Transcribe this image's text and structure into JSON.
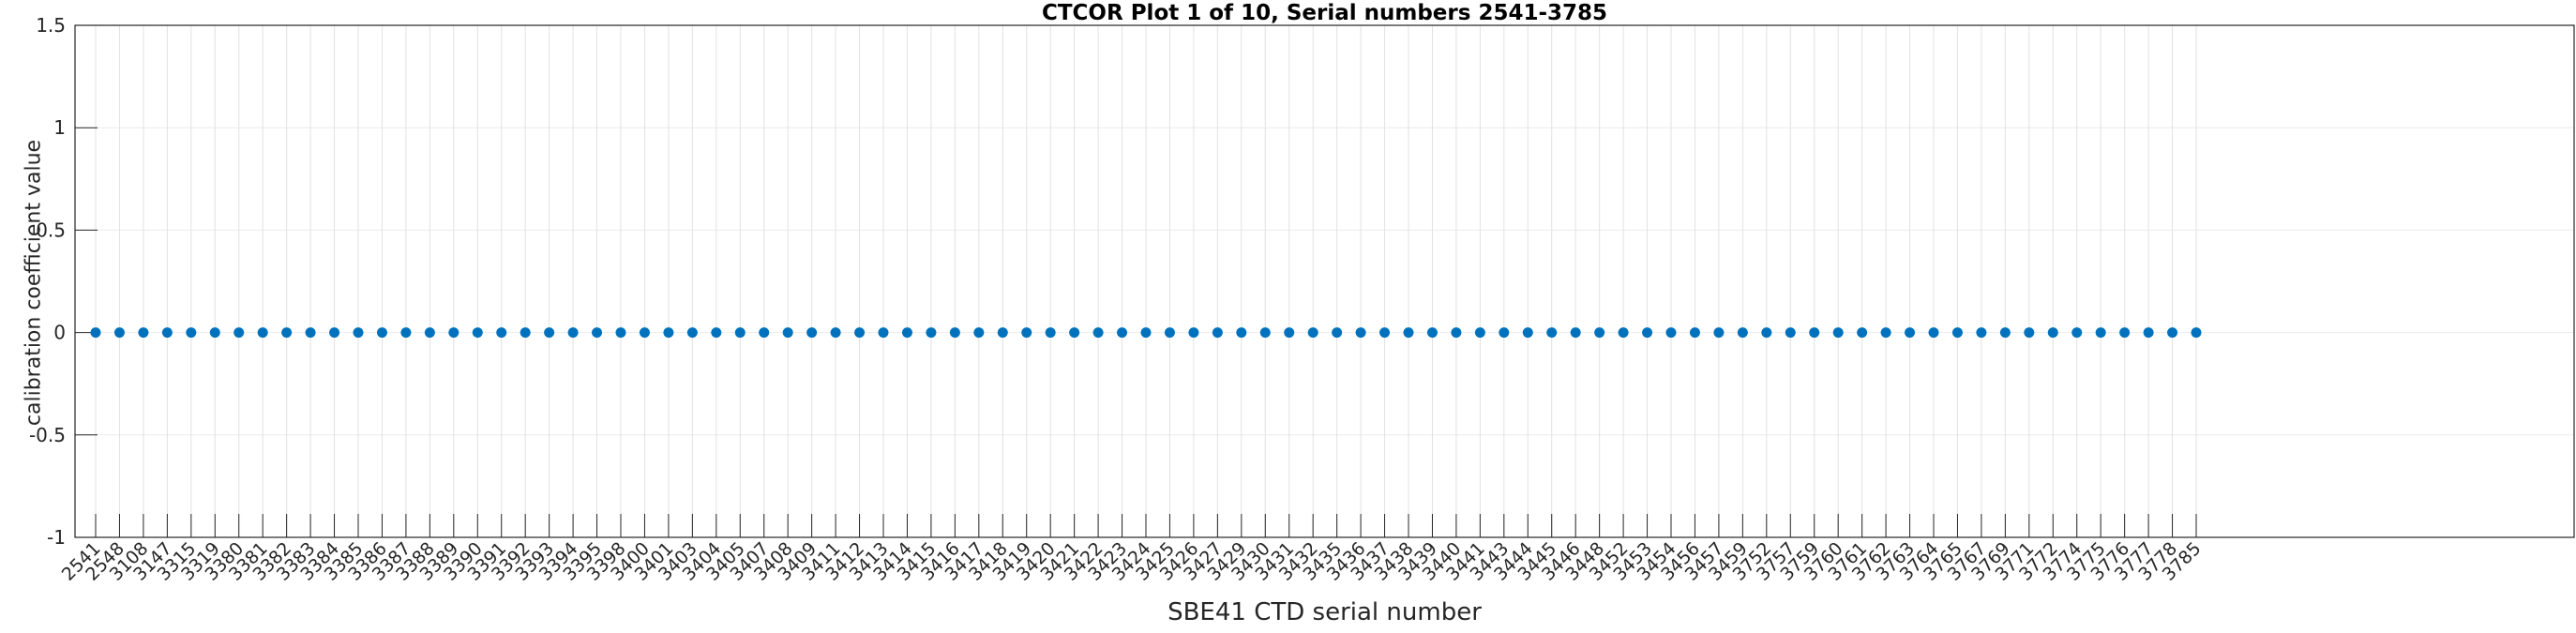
{
  "figure": {
    "title": "CTCOR Plot 1 of 10, Serial numbers 2541-3785"
  },
  "chart_data": {
    "type": "scatter",
    "title": "CTCOR Plot 1 of 10, Serial numbers 2541-3785",
    "xlabel": "SBE41 CTD serial number",
    "ylabel": "calibration coefficient value",
    "legend": "none",
    "ylim": [
      -1,
      1.5
    ],
    "yticks": [
      1.5,
      1,
      0.5,
      0,
      -0.5,
      -1
    ],
    "ytick_labels": [
      "1.5",
      "1",
      "0.5",
      "0",
      "-0.5",
      "-1"
    ],
    "grid": "vertical gridline at every serial number, faint horizontal gridlines at y ticks",
    "marker": "filled dot",
    "marker_color": "#0072BD",
    "grid_color": "#E2E2E2",
    "axis_color": "#262626",
    "categories": [
      "2541",
      "2548",
      "3108",
      "3147",
      "3315",
      "3319",
      "3380",
      "3381",
      "3382",
      "3383",
      "3384",
      "3385",
      "3386",
      "3387",
      "3388",
      "3389",
      "3390",
      "3391",
      "3392",
      "3393",
      "3394",
      "3395",
      "3398",
      "3400",
      "3401",
      "3403",
      "3404",
      "3405",
      "3407",
      "3408",
      "3409",
      "3411",
      "3412",
      "3413",
      "3414",
      "3415",
      "3416",
      "3417",
      "3418",
      "3419",
      "3420",
      "3421",
      "3422",
      "3423",
      "3424",
      "3425",
      "3426",
      "3427",
      "3429",
      "3430",
      "3431",
      "3432",
      "3435",
      "3436",
      "3437",
      "3438",
      "3439",
      "3440",
      "3441",
      "3443",
      "3444",
      "3445",
      "3446",
      "3448",
      "3452",
      "3453",
      "3454",
      "3456",
      "3457",
      "3459",
      "3752",
      "3757",
      "3759",
      "3760",
      "3761",
      "3762",
      "3763",
      "3764",
      "3765",
      "3767",
      "3769",
      "3771",
      "3772",
      "3774",
      "3775",
      "3776",
      "3777",
      "3778",
      "3785"
    ],
    "values": [
      0,
      0,
      0,
      0,
      0,
      0,
      0,
      0,
      0,
      0,
      0,
      0,
      0,
      0,
      0,
      0,
      0,
      0,
      0,
      0,
      0,
      0,
      0,
      0,
      0,
      0,
      0,
      0,
      0,
      0,
      0,
      0,
      0,
      0,
      0,
      0,
      0,
      0,
      0,
      0,
      0,
      0,
      0,
      0,
      0,
      0,
      0,
      0,
      0,
      0,
      0,
      0,
      0,
      0,
      0,
      0,
      0,
      0,
      0,
      0,
      0,
      0,
      0,
      0,
      0,
      0,
      0,
      0,
      0,
      0,
      0,
      0,
      0,
      0,
      0,
      0,
      0,
      0,
      0,
      0,
      0,
      0,
      0,
      0,
      0,
      0,
      0,
      0,
      0
    ]
  }
}
